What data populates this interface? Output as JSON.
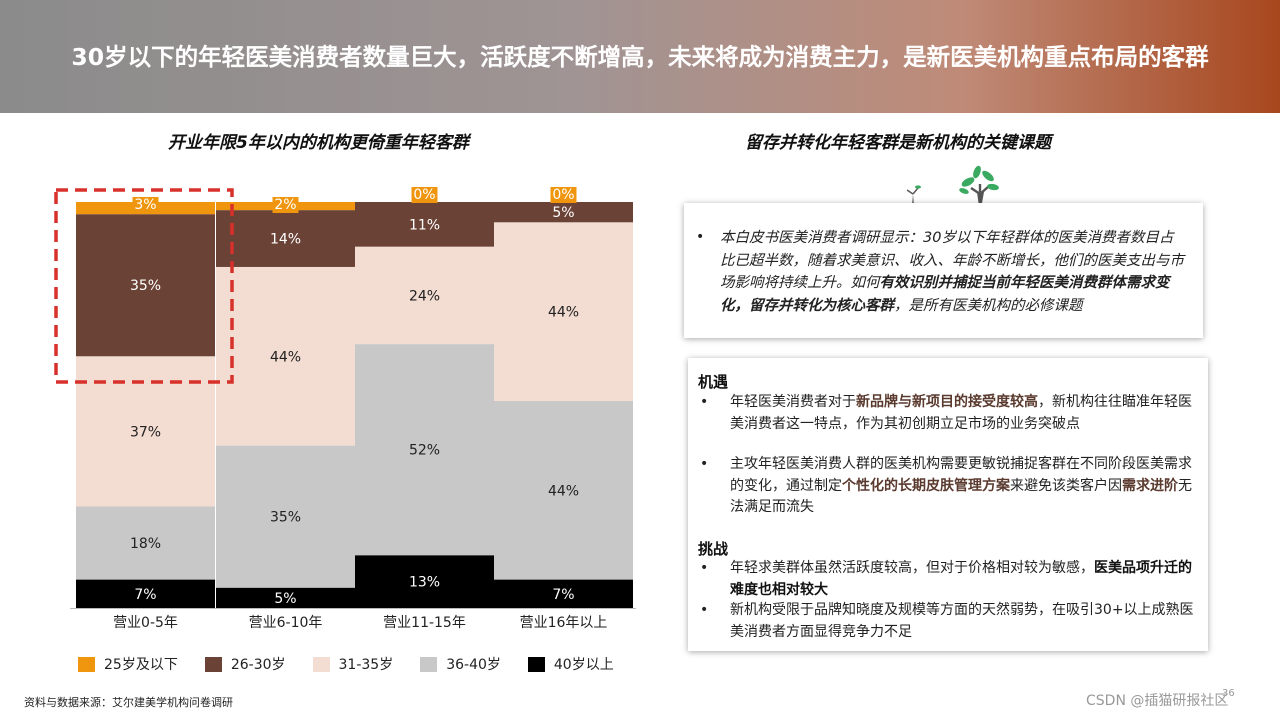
{
  "header": {
    "title": "30岁以下的年轻医美消费者数量巨大，活跃度不断增高，未来将成为消费主力，是新医美机构重点布局的客群"
  },
  "left": {
    "subtitle": "开业年限5年以内的机构更倚重年轻客群"
  },
  "right": {
    "subtitle": "留存并转化年轻客群是新机构的关键课题",
    "quote": {
      "bullet": "•",
      "text_1": "本白皮书医美消费者调研显示：30岁以下年轻群体的医美消费者数目占比已超半数，随着求美意识、收入、年龄不断增长，他们的医美支出与市场影响将持续上升。如何",
      "bold": "有效识别并捕捉当前年轻医美消费群体需求变化，留存并转化为核心客群",
      "text_2": "，是所有医美机构的必修课题"
    },
    "opportunity": {
      "title": "机遇",
      "b1_pre": "年轻医美消费者对于",
      "b1_hl": "新品牌与新项目的接受度较高",
      "b1_post": "，新机构往往瞄准年轻医美消费者这一特点，作为其初创期立足市场的业务突破点",
      "b2_pre": "主攻年轻医美消费人群的医美机构需要更敏锐捕捉客群在不同阶段医美需求的变化，通过制定",
      "b2_hl": "个性化的长期皮肤管理方案",
      "b2_mid": "来避免该类客户因",
      "b2_hl2": "需求进阶",
      "b2_post": "无法满足而流失"
    },
    "challenge": {
      "title": "挑战",
      "b1_pre": "年轻求美群体虽然活跃度较高，但对于价格相对较为敏感，",
      "b1_hl": "医美品项升迁的难度也相对较大",
      "b2": "新机构受限于品牌知晓度及规模等方面的天然弱势，在吸引30+以上成熟医美消费者方面显得竞争力不足"
    }
  },
  "chart_data": {
    "type": "bar",
    "stacked": "100%",
    "title": "开业年限5年以内的机构更倚重年轻客群",
    "categories": [
      "营业0-5年",
      "营业6-10年",
      "营业11-15年",
      "营业16年以上"
    ],
    "series": [
      {
        "name": "40岁以上",
        "color": "#000000",
        "label_color": "#ffffff",
        "values": [
          7,
          5,
          13,
          7
        ]
      },
      {
        "name": "36-40岁",
        "color": "#c8c8c8",
        "label_color": "#222222",
        "values": [
          18,
          35,
          52,
          44
        ]
      },
      {
        "name": "31-35岁",
        "color": "#f3dcd2",
        "label_color": "#222222",
        "values": [
          37,
          44,
          24,
          44
        ]
      },
      {
        "name": "26-30岁",
        "color": "#6b4236",
        "label_color": "#ffffff",
        "values": [
          35,
          14,
          11,
          5
        ]
      },
      {
        "name": "25岁及以下",
        "color": "#f0960e",
        "label_color": "#ffffff",
        "values": [
          3,
          2,
          0,
          0
        ]
      }
    ],
    "legend_order": [
      "25岁及以下",
      "26-30岁",
      "31-35岁",
      "36-40岁",
      "40岁以上"
    ],
    "ylim": [
      0,
      100
    ],
    "value_suffix": "%",
    "annotation": "dashed box highlighting the 25岁及以下 and 26-30岁 segments of 营业0-5年"
  },
  "source": "资料与数据来源：艾尔建美学机构问卷调研",
  "watermark": "CSDN @插猫研报社区",
  "page_number": "36"
}
